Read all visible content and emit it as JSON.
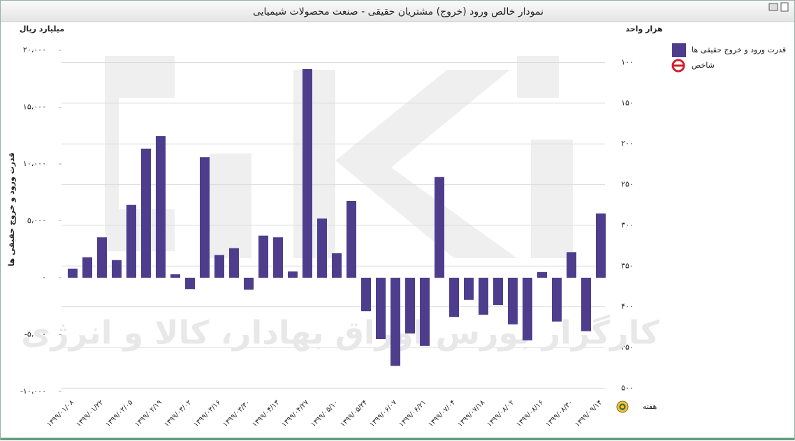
{
  "chart_data": {
    "type": "bar",
    "title": "نمودار خالص ورود (خروج) مشتریان حقیقی - صنعت محصولات شیمیایی",
    "y_unit": "میلیارد ریال",
    "y2_unit": "هزار واحد",
    "ylabel": "قدرت ورود و خروج حقیقی ها",
    "xlabel": "هفته",
    "watermark": "کارگزار بورس اوراق بهادار، کالا و انرژی",
    "categories": [
      "۱۳۹۹/۰۱/۰۸",
      null,
      "۱۳۹۹/۰۱/۲۲",
      null,
      "۱۳۹۹/۰۲/۰۵",
      null,
      "۱۳۹۹/۰۲/۱۹",
      null,
      "۱۳۹۹/۰۳/۰۲",
      null,
      "۱۳۹۹/۰۳/۱۶",
      null,
      "۱۳۹۹/۰۳/۳۰",
      null,
      "۱۳۹۹/۰۴/۱۳",
      null,
      "۱۳۹۹/۰۴/۲۷",
      null,
      "۱۳۹۹/۰۵/۱۰",
      null,
      "۱۳۹۹/۰۵/۲۴",
      null,
      "۱۳۹۹/۰۶/۰۷",
      null,
      "۱۳۹۹/۰۶/۲۱",
      null,
      "۱۳۹۹/۰۷/۰۴",
      null,
      "۱۳۹۹/۰۷/۱۸",
      null,
      "۱۳۹۹/۰۸/۰۲",
      null,
      "۱۳۹۹/۰۸/۱۶",
      null,
      "۱۳۹۹/۰۸/۳۰",
      null,
      "۱۳۹۹/۰۹/۱۴"
    ],
    "series": [
      {
        "name": "قدرت ورود و خروج حقیقی ها",
        "color": "#4e3d8d",
        "values": [
          800,
          1800,
          3550,
          1550,
          6400,
          11350,
          12450,
          300,
          -1000,
          10600,
          2000,
          2600,
          -1050,
          3700,
          3550,
          550,
          18350,
          5200,
          2150,
          6750,
          -2950,
          -5400,
          -7750,
          -4900,
          -6000,
          8850,
          -3450,
          -1950,
          -3250,
          -2400,
          -4100,
          -5500,
          500,
          -3850,
          2250,
          -4700,
          5650
        ]
      },
      {
        "name": "شاخص",
        "color": "#d0202e",
        "axis": "y2",
        "values": [
          null,
          null,
          null,
          null,
          null,
          null,
          null,
          null,
          null,
          null,
          null,
          null,
          null,
          null,
          null,
          null,
          null,
          null,
          null,
          null,
          null,
          null,
          null,
          null,
          null,
          null,
          null,
          null,
          null,
          null,
          null,
          null,
          null,
          null,
          null,
          null,
          null
        ]
      }
    ],
    "ylim": [
      -10000,
      20000
    ],
    "yticks": [
      {
        "value": -10000,
        "label": "-۱۰،۰۰۰"
      },
      {
        "value": -5000,
        "label": "-۵،۰۰۰"
      },
      {
        "value": 0,
        "label": "۰"
      },
      {
        "value": 5000,
        "label": "۵،۰۰۰"
      },
      {
        "value": 10000,
        "label": "۱۰،۰۰۰"
      },
      {
        "value": 15000,
        "label": "۱۵،۰۰۰"
      },
      {
        "value": 20000,
        "label": "۲۰،۰۰۰"
      }
    ],
    "y2lim": [
      85,
      504
    ],
    "y2_inverted": true,
    "y2ticks": [
      {
        "value": 100,
        "label": "۱۰۰"
      },
      {
        "value": 150,
        "label": "۱۵۰"
      },
      {
        "value": 200,
        "label": "۲۰۰"
      },
      {
        "value": 250,
        "label": "۲۵۰"
      },
      {
        "value": 300,
        "label": "۳۰۰"
      },
      {
        "value": 350,
        "label": "۳۵۰"
      },
      {
        "value": 400,
        "label": "۴۰۰"
      },
      {
        "value": 450,
        "label": "۴۵۰"
      },
      {
        "value": 500,
        "label": "۵۰۰"
      }
    ],
    "grid": "y2"
  }
}
